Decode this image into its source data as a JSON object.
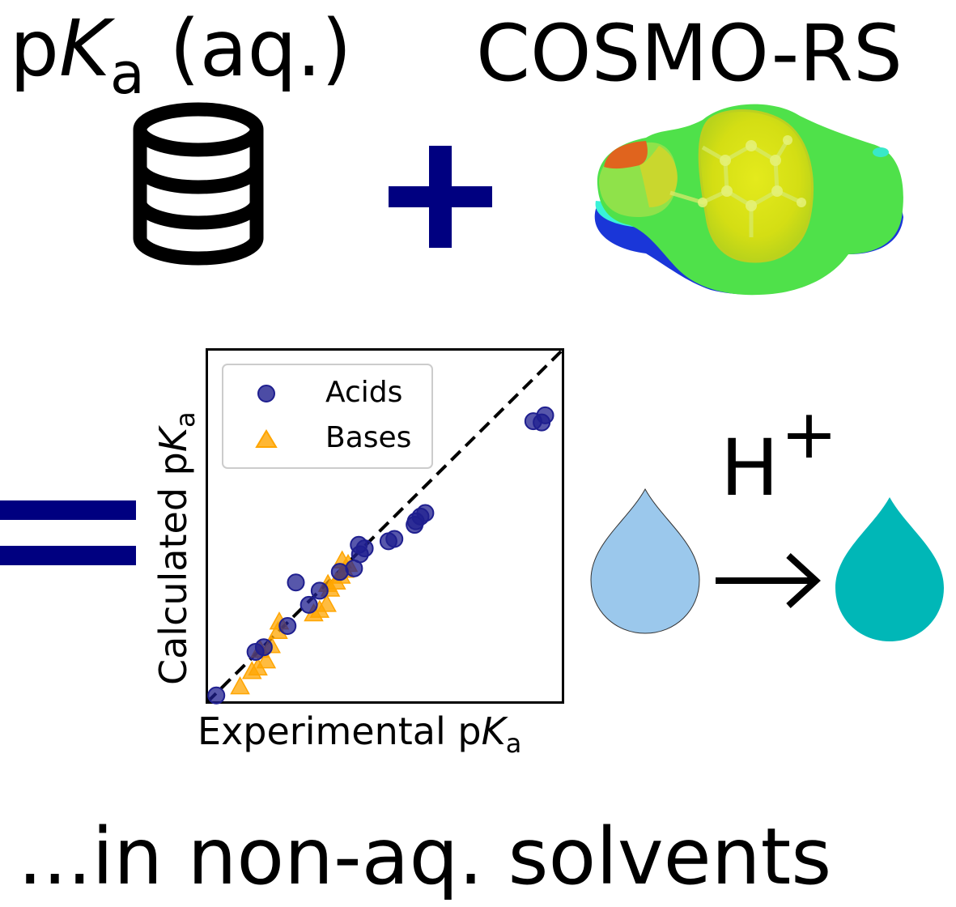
{
  "header": {
    "left_title": {
      "p": "p",
      "k": "K",
      "sub": "a",
      "rest": " (aq.)"
    },
    "right_title": "COSMO-RS"
  },
  "footer": {
    "text": "...in non-aq. solvents"
  },
  "reaction": {
    "label": "H",
    "superscript": "+"
  },
  "colors": {
    "navy": "#000080",
    "drop_left": "#9bc8ec",
    "drop_right": "#00b7b7",
    "acids": "#1f1f8f",
    "bases": "#ffa500"
  },
  "icons": [
    "database-icon",
    "plus-icon",
    "cosmo-surface-icon",
    "equals-icon",
    "droplet-icon",
    "arrow-right-icon"
  ],
  "chart_data": {
    "type": "scatter",
    "title": "",
    "xlabel": {
      "text": "Experimental p",
      "k": "K",
      "sub": "a"
    },
    "ylabel": {
      "text": "Calculated p",
      "k": "K",
      "sub": "a"
    },
    "xlim": [
      0,
      30
    ],
    "ylim": [
      0,
      30
    ],
    "ticks_shown": false,
    "legend_position": "upper-left",
    "diagonal": {
      "style": "dashed",
      "from": [
        0,
        0
      ],
      "to": [
        30,
        30
      ]
    },
    "series": [
      {
        "name": "Acids",
        "marker": "circle",
        "points": [
          [
            0.8,
            0.6
          ],
          [
            4.1,
            4.3
          ],
          [
            4.8,
            4.7
          ],
          [
            6.8,
            6.5
          ],
          [
            8.6,
            8.3
          ],
          [
            7.5,
            10.2
          ],
          [
            9.5,
            9.5
          ],
          [
            11.2,
            11.1
          ],
          [
            12.4,
            11.4
          ],
          [
            12.9,
            12.6
          ],
          [
            12.8,
            13.4
          ],
          [
            13.3,
            13.1
          ],
          [
            15.3,
            13.7
          ],
          [
            15.8,
            13.9
          ],
          [
            17.5,
            15.1
          ],
          [
            17.6,
            15.4
          ],
          [
            18.0,
            15.8
          ],
          [
            18.4,
            16.1
          ],
          [
            27.5,
            23.9
          ],
          [
            28.2,
            23.8
          ],
          [
            28.5,
            24.4
          ]
        ]
      },
      {
        "name": "Bases",
        "marker": "triangle",
        "points": [
          [
            2.8,
            1.3
          ],
          [
            3.8,
            2.6
          ],
          [
            4.3,
            2.9
          ],
          [
            5.0,
            3.5
          ],
          [
            4.5,
            4.4
          ],
          [
            5.4,
            4.8
          ],
          [
            6.0,
            6.0
          ],
          [
            9.0,
            7.5
          ],
          [
            9.5,
            7.8
          ],
          [
            10.1,
            8.3
          ],
          [
            10.4,
            9.6
          ],
          [
            10.9,
            10.2
          ],
          [
            11.3,
            10.7
          ],
          [
            11.6,
            11.2
          ],
          [
            11.9,
            11.7
          ],
          [
            11.4,
            12.0
          ],
          [
            6.1,
            6.8
          ],
          [
            10.2,
            10.0
          ]
        ]
      }
    ]
  }
}
